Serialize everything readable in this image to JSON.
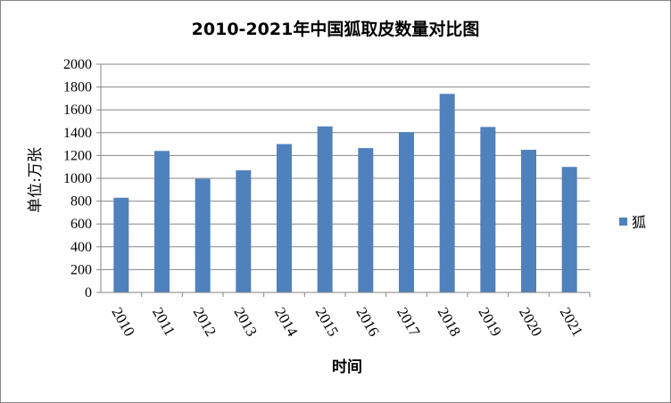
{
  "chart_data": {
    "type": "bar",
    "title": "2010-2021年中国狐取皮数量对比图",
    "xlabel": "时间",
    "ylabel": "单位:万张",
    "categories": [
      "2010",
      "2011",
      "2012",
      "2013",
      "2014",
      "2015",
      "2016",
      "2017",
      "2018",
      "2019",
      "2020",
      "2021"
    ],
    "series": [
      {
        "name": "狐",
        "color": "#4F81BD",
        "values": [
          830,
          1240,
          995,
          1070,
          1300,
          1455,
          1265,
          1405,
          1740,
          1450,
          1250,
          1100
        ]
      }
    ],
    "ylim": [
      0,
      2000
    ],
    "yticks": [
      0,
      200,
      400,
      600,
      800,
      1000,
      1200,
      1400,
      1600,
      1800,
      2000
    ],
    "grid": true,
    "legend_position": "right"
  }
}
